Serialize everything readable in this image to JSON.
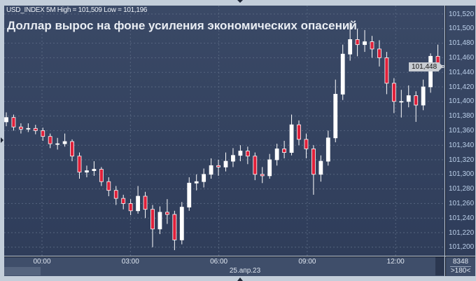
{
  "header": {
    "instrument_line": "USD_INDEX 5M High = 101,509 Low = 101,196"
  },
  "title": "Доллар вырос на фоне усиления экономических опасений",
  "footer": {
    "date": "25.апр.23",
    "bars_count": "8348",
    "zoom": ">180<"
  },
  "colors": {
    "background": "#34435f",
    "up_candle": "#ffffff",
    "down_candle": "#e0203a",
    "grid": "#56657f"
  },
  "chart_data": {
    "type": "candlestick",
    "timeframe": "5M",
    "high": 101509,
    "low": 101196,
    "last_price": "101,448",
    "ylim": [
      101190,
      101530
    ],
    "y_ticks": [
      "101,520",
      "101,500",
      "101,480",
      "101,460",
      "101,440",
      "101,420",
      "101,400",
      "101,380",
      "101,360",
      "101,340",
      "101,320",
      "101,300",
      "101,280",
      "101,260",
      "101,240",
      "101,220",
      "101,200"
    ],
    "x_ticks": [
      "00:00",
      "03:00",
      "06:00",
      "09:00",
      "12:00"
    ],
    "grid": true,
    "candles_ohlc": [
      [
        101372,
        101385,
        101366,
        101378
      ],
      [
        101378,
        101382,
        101360,
        101365
      ],
      [
        101365,
        101370,
        101356,
        101362
      ],
      [
        101362,
        101370,
        101358,
        101363
      ],
      [
        101363,
        101368,
        101355,
        101360
      ],
      [
        101360,
        101364,
        101346,
        101352
      ],
      [
        101352,
        101356,
        101336,
        101342
      ],
      [
        101342,
        101350,
        101334,
        101342
      ],
      [
        101342,
        101356,
        101338,
        101345
      ],
      [
        101345,
        101348,
        101318,
        101325
      ],
      [
        101325,
        101330,
        101294,
        101303
      ],
      [
        101303,
        101312,
        101296,
        101305
      ],
      [
        101305,
        101318,
        101298,
        101307
      ],
      [
        101307,
        101310,
        101284,
        101290
      ],
      [
        101290,
        101296,
        101270,
        101278
      ],
      [
        101278,
        101284,
        101258,
        101267
      ],
      [
        101267,
        101272,
        101252,
        101260
      ],
      [
        101260,
        101266,
        101244,
        101250
      ],
      [
        101250,
        101284,
        101246,
        101270
      ],
      [
        101270,
        101276,
        101240,
        101252
      ],
      [
        101252,
        101258,
        101200,
        101225
      ],
      [
        101225,
        101256,
        101218,
        101248
      ],
      [
        101248,
        101266,
        101232,
        101245
      ],
      [
        101245,
        101250,
        101196,
        101210
      ],
      [
        101210,
        101262,
        101204,
        101255
      ],
      [
        101255,
        101296,
        101250,
        101288
      ],
      [
        101288,
        101300,
        101278,
        101290
      ],
      [
        101290,
        101308,
        101282,
        101300
      ],
      [
        101300,
        101322,
        101294,
        101312
      ],
      [
        101312,
        101320,
        101298,
        101310
      ],
      [
        101310,
        101330,
        101304,
        101318
      ],
      [
        101318,
        101336,
        101310,
        101326
      ],
      [
        101326,
        101340,
        101318,
        101332
      ],
      [
        101332,
        101338,
        101314,
        101325
      ],
      [
        101325,
        101330,
        101292,
        101300
      ],
      [
        101300,
        101310,
        101288,
        101298
      ],
      [
        101298,
        101328,
        101294,
        101320
      ],
      [
        101320,
        101342,
        101312,
        101335
      ],
      [
        101335,
        101346,
        101322,
        101330
      ],
      [
        101330,
        101382,
        101326,
        101368
      ],
      [
        101368,
        101374,
        101340,
        101348
      ],
      [
        101348,
        101356,
        101322,
        101335
      ],
      [
        101335,
        101340,
        101272,
        101300
      ],
      [
        101300,
        101326,
        101290,
        101318
      ],
      [
        101318,
        101360,
        101312,
        101350
      ],
      [
        101350,
        101430,
        101344,
        101410
      ],
      [
        101410,
        101478,
        101402,
        101465
      ],
      [
        101465,
        101509,
        101456,
        101485
      ],
      [
        101485,
        101500,
        101462,
        101478
      ],
      [
        101478,
        101498,
        101468,
        101482
      ],
      [
        101482,
        101490,
        101460,
        101472
      ],
      [
        101472,
        101484,
        101448,
        101460
      ],
      [
        101460,
        101468,
        101410,
        101425
      ],
      [
        101425,
        101432,
        101384,
        101400
      ],
      [
        101400,
        101416,
        101378,
        101400
      ],
      [
        101400,
        101422,
        101392,
        101408
      ],
      [
        101408,
        101414,
        101372,
        101395
      ],
      [
        101395,
        101430,
        101388,
        101420
      ],
      [
        101420,
        101466,
        101412,
        101462
      ],
      [
        101462,
        101478,
        101442,
        101448
      ]
    ]
  }
}
